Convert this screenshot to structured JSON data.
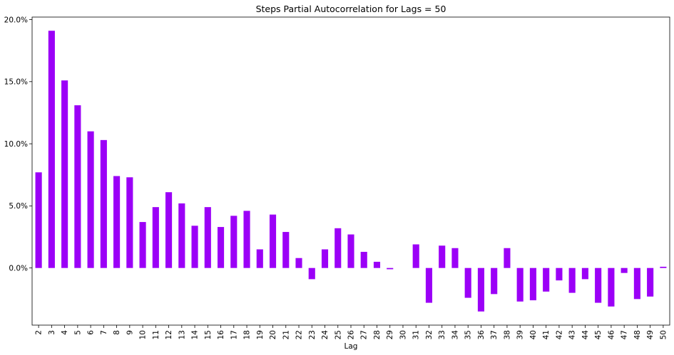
{
  "chart_data": {
    "type": "bar",
    "title": "Steps Partial Autocorrelation for Lags = 50",
    "xlabel": "Lag",
    "ylabel": "",
    "ylim": [
      -0.046,
      0.202
    ],
    "yticks": [
      0.0,
      0.05,
      0.1,
      0.15,
      0.2
    ],
    "ytick_labels": [
      "0.0%",
      "5.0%",
      "10.0%",
      "15.0%",
      "20.0%"
    ],
    "grid": false,
    "legend": "none",
    "bar_color": "#9b00f7",
    "categories": [
      "2",
      "3",
      "4",
      "5",
      "6",
      "7",
      "8",
      "9",
      "10",
      "11",
      "12",
      "13",
      "14",
      "15",
      "16",
      "17",
      "18",
      "19",
      "20",
      "21",
      "22",
      "23",
      "24",
      "25",
      "26",
      "27",
      "28",
      "29",
      "30",
      "31",
      "32",
      "33",
      "34",
      "35",
      "36",
      "37",
      "38",
      "39",
      "40",
      "41",
      "42",
      "43",
      "44",
      "45",
      "46",
      "47",
      "48",
      "49",
      "50"
    ],
    "values": [
      0.077,
      0.191,
      0.151,
      0.131,
      0.11,
      0.103,
      0.074,
      0.073,
      0.037,
      0.049,
      0.061,
      0.052,
      0.034,
      0.049,
      0.033,
      0.042,
      0.046,
      0.015,
      0.043,
      0.029,
      0.008,
      -0.009,
      0.015,
      0.032,
      0.027,
      0.013,
      0.005,
      -0.001,
      0.0,
      0.019,
      -0.028,
      0.018,
      0.016,
      -0.024,
      -0.035,
      -0.021,
      0.016,
      -0.027,
      -0.026,
      -0.019,
      -0.01,
      -0.02,
      -0.009,
      -0.028,
      -0.031,
      -0.004,
      -0.025,
      -0.023,
      0.001
    ]
  }
}
